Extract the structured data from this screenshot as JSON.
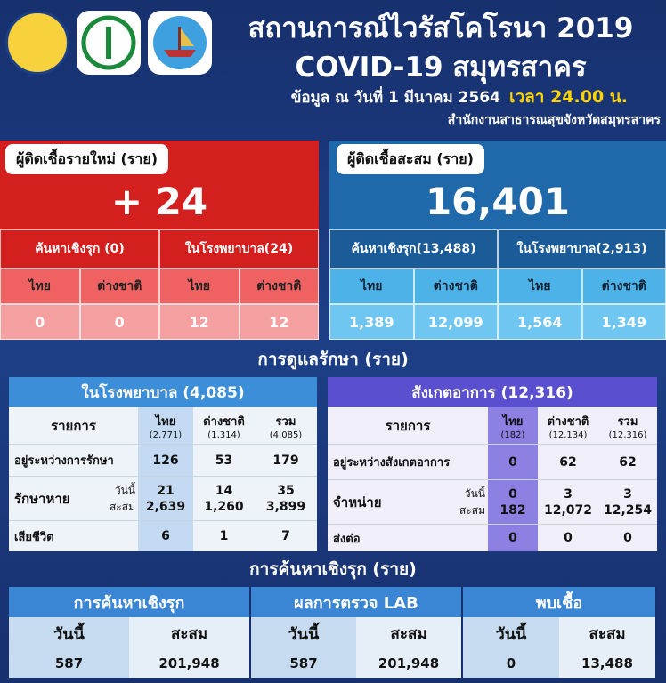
{
  "header": {
    "title_line1": "สถานการณ์ไวรัสโคโรนา 2019",
    "title_line2": "COVID-19 สมุทรสาคร",
    "date": "ข้อมูล ณ วันที่ 1 มีนาคม 2564",
    "time": "เวลา 24.00 น.",
    "agency": "สำนักงานสาธารณสุขจังหวัดสมุทรสาคร"
  },
  "new_cases": {
    "label": "ผู้ติดเชื้อรายใหม่ (ราย)",
    "total": "+ 24",
    "groups": [
      {
        "label": "ค้นหาเชิงรุก (0)",
        "columns": [
          {
            "name": "ไทย",
            "value": 0
          },
          {
            "name": "ต่างชาติ",
            "value": 0
          }
        ]
      },
      {
        "label": "ในโรงพยาบาล(24)",
        "columns": [
          {
            "name": "ไทย",
            "value": 12
          },
          {
            "name": "ต่างชาติ",
            "value": 12
          }
        ]
      }
    ]
  },
  "cumulative": {
    "label": "ผู้ติดเชื้อสะสม (ราย)",
    "total": "16,401",
    "groups": [
      {
        "label": "ค้นหาเชิงรุก(13,488)",
        "columns": [
          {
            "name": "ไทย",
            "value": "1,389"
          },
          {
            "name": "ต่างชาติ",
            "value": "12,099"
          }
        ]
      },
      {
        "label": "ในโรงพยาบาล(2,913)",
        "columns": [
          {
            "name": "ไทย",
            "value": "1,564"
          },
          {
            "name": "ต่างชาติ",
            "value": "1,349"
          }
        ]
      }
    ]
  },
  "care_title": "การดูแลรักษา (ราย)",
  "hospital": {
    "title": "ในโรงพยาบาล (4,085)",
    "header": {
      "item": "รายการ",
      "columns": [
        {
          "name": "ไทย",
          "sub": "(2,771)"
        },
        {
          "name": "ต่างชาติ",
          "sub": "(1,314)"
        },
        {
          "name": "รวม",
          "sub": "(4,085)"
        }
      ]
    },
    "treating": {
      "label": "อยู่ระหว่างการรักษา",
      "values": [
        126,
        53,
        179
      ]
    },
    "recovered": {
      "label": "รักษาหาย",
      "today_label": "วันนี้",
      "total_label": "สะสม",
      "today": [
        21,
        14,
        35
      ],
      "total": [
        "2,639",
        "1,260",
        "3,899"
      ]
    },
    "deaths": {
      "label": "เสียชีวิต",
      "values": [
        6,
        1,
        7
      ]
    }
  },
  "observation": {
    "title": "สังเกตอาการ (12,316)",
    "header": {
      "item": "รายการ",
      "columns": [
        {
          "name": "ไทย",
          "sub": "(182)"
        },
        {
          "name": "ต่างชาติ",
          "sub": "(12,134)"
        },
        {
          "name": "รวม",
          "sub": "(12,316)"
        }
      ]
    },
    "observing": {
      "label": "อยู่ระหว่างสังเกตอาการ",
      "values": [
        0,
        62,
        62
      ]
    },
    "discharged": {
      "label": "จำหน่าย",
      "today_label": "วันนี้",
      "total_label": "สะสม",
      "today": [
        0,
        3,
        3
      ],
      "total": [
        182,
        "12,072",
        "12,254"
      ]
    },
    "referred": {
      "label": "ส่งต่อ",
      "values": [
        0,
        0,
        0
      ]
    }
  },
  "proactive_title": "การค้นหาเชิงรุก (ราย)",
  "proactive": [
    {
      "title": "การค้นหาเชิงรุก",
      "today_label": "วันนี้",
      "today": 587,
      "total_label": "สะสม",
      "total": "201,948"
    },
    {
      "title": "ผลการตรวจ LAB",
      "today_label": "วันนี้",
      "today": 587,
      "total_label": "สะสม",
      "total": "201,948"
    },
    {
      "title": "พบเชื้อ",
      "today_label": "วันนี้",
      "today": 0,
      "total_label": "สะสม",
      "total": "13,488"
    }
  ]
}
